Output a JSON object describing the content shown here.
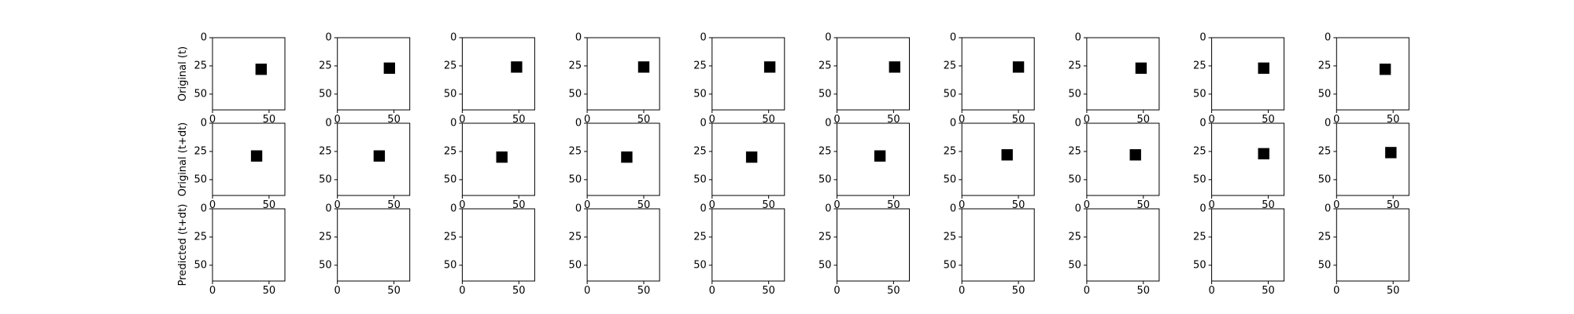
{
  "chart_data": {
    "type": "image-grid",
    "rows": 3,
    "cols": 10,
    "image_size": 64,
    "square_size": 10,
    "xlim": [
      0,
      64
    ],
    "ylim": [
      64,
      0
    ],
    "x_ticks": [
      0,
      50
    ],
    "y_ticks": [
      0,
      25,
      50
    ],
    "grid": false,
    "square_color": "#000000",
    "background_color": "#ffffff",
    "row_labels": [
      "Original (t)",
      "Original (t+dt)",
      "Predicted (t+dt)"
    ],
    "panels": [
      [
        {
          "cx": 43,
          "cy": 28
        },
        {
          "cx": 46,
          "cy": 27
        },
        {
          "cx": 48,
          "cy": 26
        },
        {
          "cx": 50,
          "cy": 26
        },
        {
          "cx": 51,
          "cy": 26
        },
        {
          "cx": 51,
          "cy": 26
        },
        {
          "cx": 50,
          "cy": 26
        },
        {
          "cx": 48,
          "cy": 27
        },
        {
          "cx": 46,
          "cy": 27
        },
        {
          "cx": 43,
          "cy": 28
        }
      ],
      [
        {
          "cx": 39,
          "cy": 29
        },
        {
          "cx": 37,
          "cy": 29
        },
        {
          "cx": 35,
          "cy": 30
        },
        {
          "cx": 35,
          "cy": 30
        },
        {
          "cx": 35,
          "cy": 30
        },
        {
          "cx": 38,
          "cy": 29
        },
        {
          "cx": 40,
          "cy": 28
        },
        {
          "cx": 43,
          "cy": 28
        },
        {
          "cx": 46,
          "cy": 27
        },
        {
          "cx": 48,
          "cy": 26
        }
      ],
      [
        null,
        null,
        null,
        null,
        null,
        null,
        null,
        null,
        null,
        null
      ]
    ]
  }
}
